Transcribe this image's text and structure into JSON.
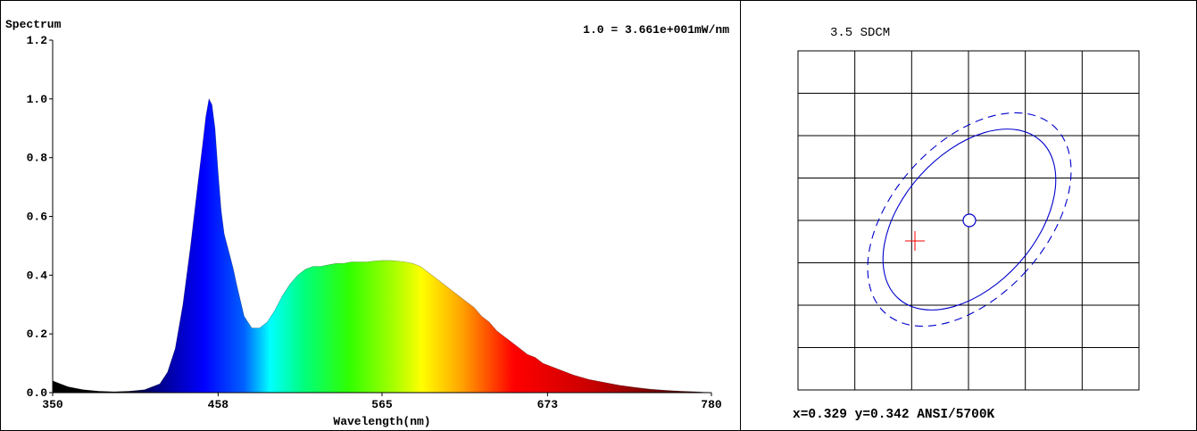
{
  "spectrum": {
    "title": "Spectrum",
    "scale_note": "1.0 = 3.661e+001mW/nm",
    "xlabel": "Wavelength(nm)",
    "x_ticks": [
      "350",
      "458",
      "565",
      "673",
      "780"
    ],
    "y_ticks": [
      "0.0",
      "0.2",
      "0.4",
      "0.6",
      "0.8",
      "1.0",
      "1.2"
    ]
  },
  "sdcm": {
    "title": "3.5 SDCM",
    "readout": "x=0.329 y=0.342 ANSI/5700K"
  },
  "chart_data": [
    {
      "type": "area",
      "title": "Spectrum",
      "xlabel": "Wavelength(nm)",
      "ylabel": "",
      "xlim": [
        350,
        780
      ],
      "ylim": [
        0,
        1.2
      ],
      "x_ticks": [
        350,
        458,
        565,
        673,
        780
      ],
      "y_ticks": [
        0,
        0.2,
        0.4,
        0.6,
        0.8,
        1.0,
        1.2
      ],
      "annotation": "1.0 = 3.661e+001mW/nm",
      "fill": "visible-spectrum color gradient",
      "series": [
        {
          "x": [
            350,
            355,
            360,
            365,
            370,
            380,
            390,
            400,
            410,
            420,
            425,
            430,
            435,
            440,
            445,
            448,
            450,
            452,
            454,
            456,
            458,
            460,
            462,
            465,
            468,
            470,
            475,
            480,
            485,
            490,
            495,
            500,
            505,
            510,
            515,
            520,
            525,
            530,
            535,
            540,
            545,
            550,
            555,
            560,
            565,
            570,
            575,
            580,
            585,
            590,
            595,
            600,
            605,
            610,
            615,
            620,
            625,
            630,
            635,
            640,
            645,
            650,
            655,
            660,
            665,
            670,
            675,
            680,
            690,
            700,
            710,
            720,
            730,
            740,
            750,
            760,
            770,
            780
          ],
          "y": [
            0.04,
            0.03,
            0.02,
            0.015,
            0.01,
            0.005,
            0.003,
            0.005,
            0.01,
            0.03,
            0.07,
            0.15,
            0.3,
            0.5,
            0.72,
            0.85,
            0.94,
            1.0,
            0.98,
            0.9,
            0.75,
            0.62,
            0.54,
            0.48,
            0.42,
            0.37,
            0.26,
            0.22,
            0.22,
            0.24,
            0.28,
            0.33,
            0.37,
            0.4,
            0.42,
            0.43,
            0.43,
            0.435,
            0.44,
            0.44,
            0.445,
            0.445,
            0.445,
            0.448,
            0.45,
            0.45,
            0.448,
            0.445,
            0.44,
            0.43,
            0.41,
            0.39,
            0.37,
            0.35,
            0.33,
            0.31,
            0.29,
            0.26,
            0.24,
            0.21,
            0.19,
            0.17,
            0.15,
            0.13,
            0.12,
            0.1,
            0.09,
            0.08,
            0.06,
            0.045,
            0.035,
            0.025,
            0.018,
            0.012,
            0.008,
            0.005,
            0.003,
            0.0
          ]
        }
      ]
    },
    {
      "type": "scatter",
      "title": "3.5 SDCM",
      "grid": true,
      "annotation": "x=0.329 y=0.342 ANSI/5700K",
      "marker": {
        "shape": "cross",
        "color": "#ff0000"
      },
      "target": {
        "shape": "circle",
        "color": "#0000cc"
      },
      "ellipses": [
        {
          "style": "solid",
          "color": "#0000cc"
        },
        {
          "style": "dashed",
          "color": "#0000cc"
        }
      ]
    }
  ]
}
